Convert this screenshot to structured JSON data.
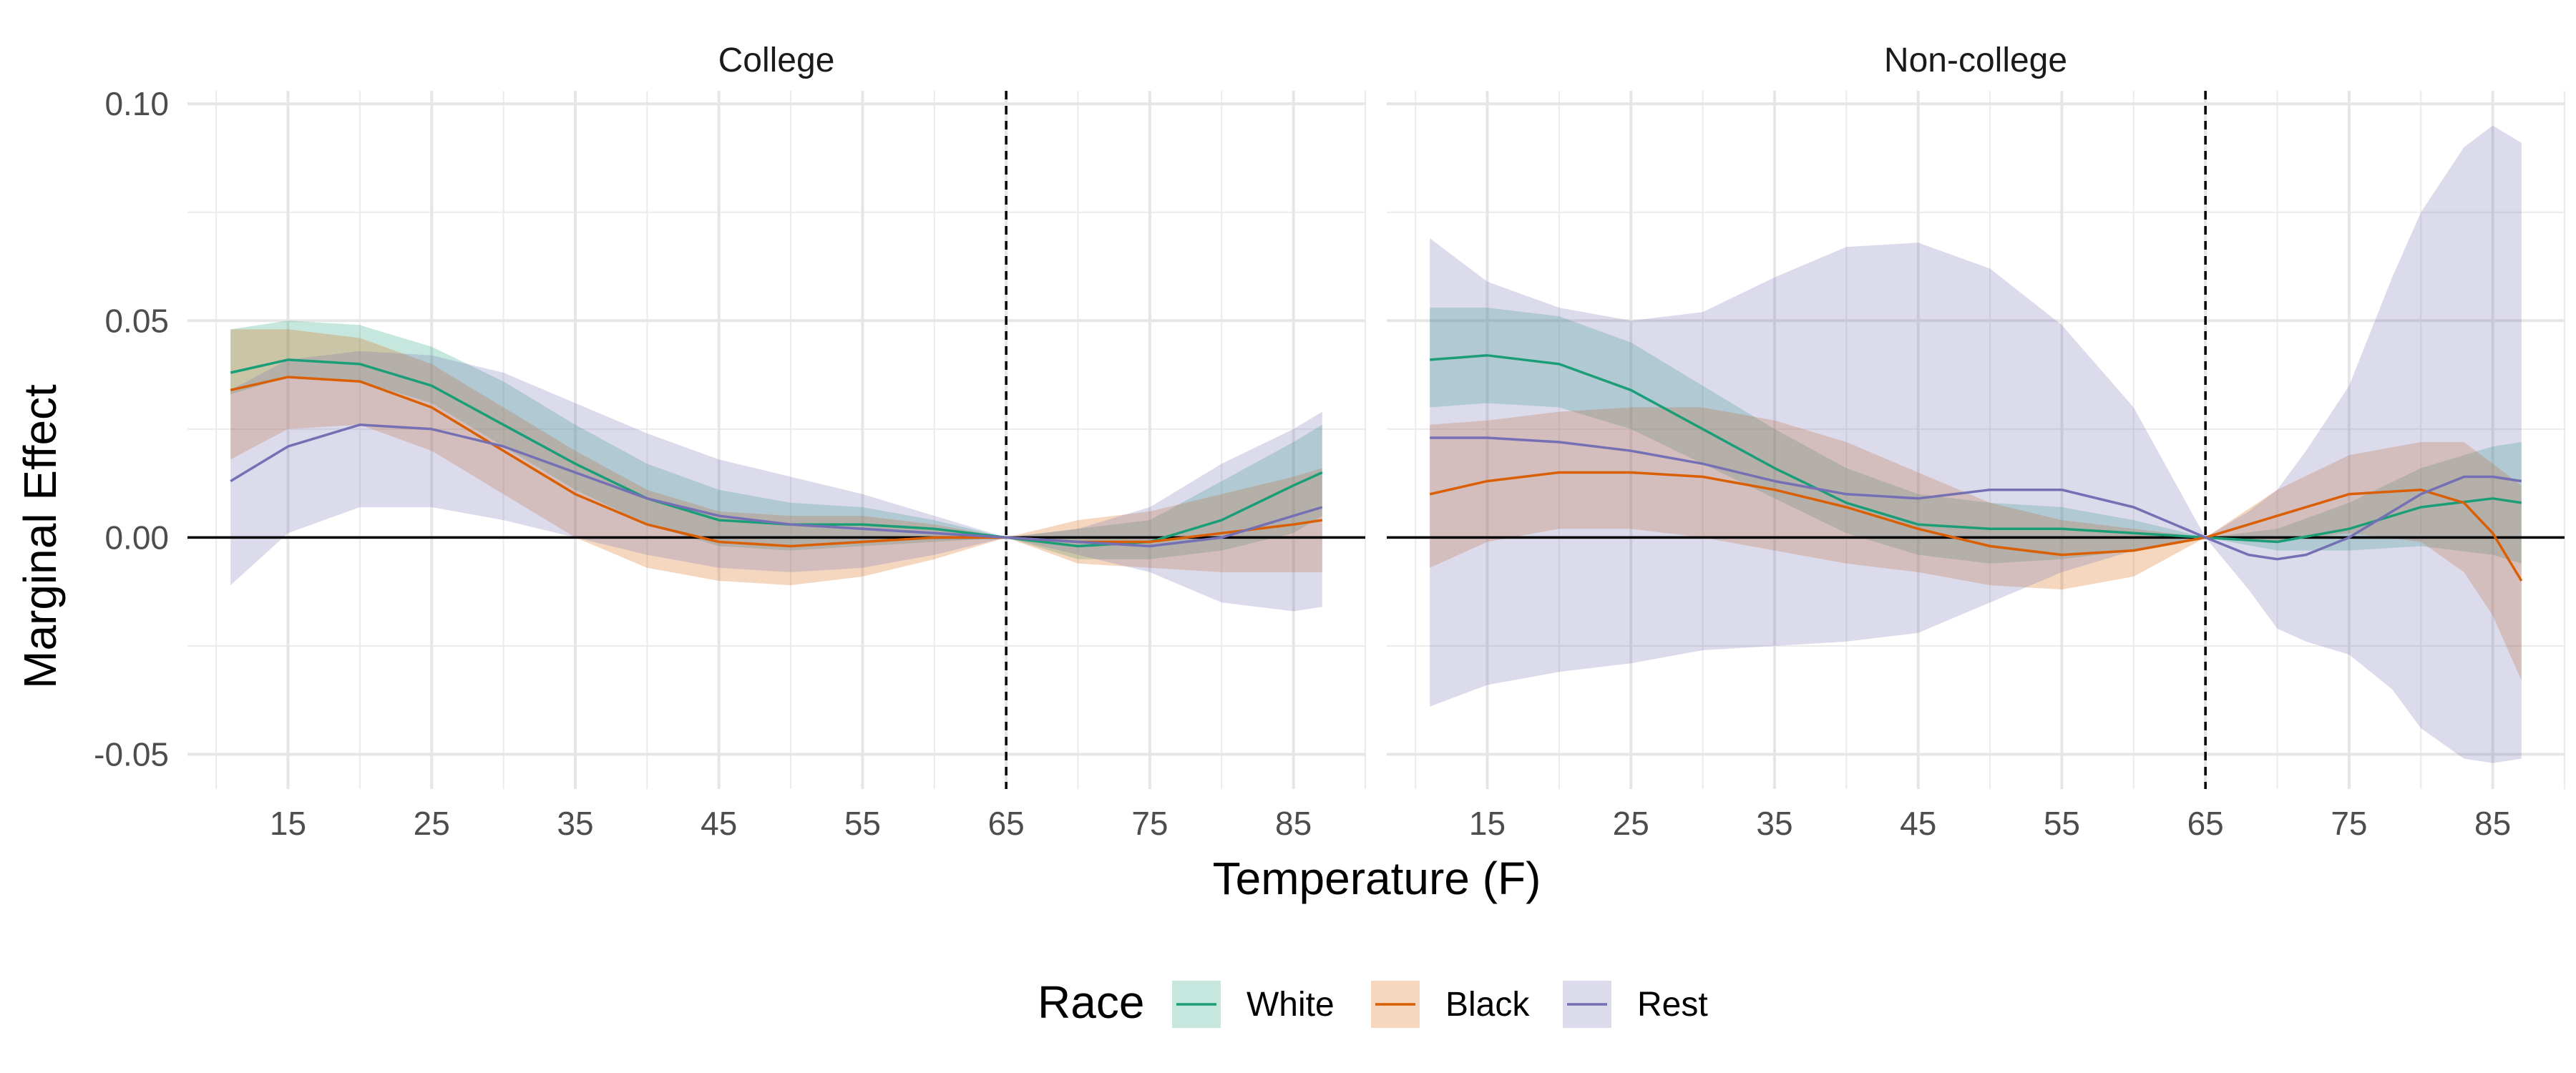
{
  "chart_data": {
    "type": "line",
    "xlabel": "Temperature (F)",
    "ylabel": "Marginal Effect",
    "xlim": [
      8,
      90
    ],
    "ylim": [
      -0.058,
      0.103
    ],
    "x_ticks": [
      15,
      25,
      35,
      45,
      55,
      65,
      75,
      85
    ],
    "y_ticks": [
      -0.05,
      0.0,
      0.05,
      0.1
    ],
    "y_tick_labels": [
      "-0.05",
      "0.00",
      "0.05",
      "0.10"
    ],
    "reference_vline": 65,
    "reference_hline": 0,
    "grid": true,
    "legend": {
      "title": "Race",
      "position": "bottom",
      "entries": [
        "White",
        "Black",
        "Rest"
      ]
    },
    "colors": {
      "White": "#1b9e77",
      "Black": "#d95f02",
      "Rest": "#7570b3"
    },
    "panels": [
      {
        "name": "College",
        "series": [
          {
            "name": "White",
            "x": [
              11,
              15,
              20,
              25,
              30,
              35,
              40,
              45,
              50,
              55,
              60,
              65,
              70,
              75,
              80,
              85,
              87
            ],
            "y": [
              0.038,
              0.041,
              0.04,
              0.035,
              0.026,
              0.017,
              0.009,
              0.004,
              0.003,
              0.003,
              0.002,
              0.0,
              -0.002,
              -0.001,
              0.004,
              0.012,
              0.015
            ],
            "lower": [
              0.033,
              0.037,
              0.036,
              0.031,
              0.021,
              0.011,
              0.003,
              -0.002,
              -0.003,
              -0.002,
              -0.001,
              0.0,
              -0.005,
              -0.005,
              -0.003,
              0.001,
              0.005
            ],
            "upper": [
              0.048,
              0.05,
              0.049,
              0.044,
              0.036,
              0.026,
              0.017,
              0.011,
              0.008,
              0.007,
              0.004,
              0.0,
              0.002,
              0.004,
              0.013,
              0.022,
              0.026
            ]
          },
          {
            "name": "Black",
            "x": [
              11,
              15,
              20,
              25,
              30,
              35,
              40,
              45,
              50,
              55,
              60,
              65,
              70,
              75,
              80,
              85,
              87
            ],
            "y": [
              0.034,
              0.037,
              0.036,
              0.03,
              0.02,
              0.01,
              0.003,
              -0.001,
              -0.002,
              -0.001,
              0.0,
              0.0,
              -0.001,
              -0.001,
              0.001,
              0.003,
              0.004
            ],
            "lower": [
              0.018,
              0.025,
              0.026,
              0.02,
              0.01,
              0.0,
              -0.007,
              -0.01,
              -0.011,
              -0.009,
              -0.005,
              0.0,
              -0.006,
              -0.007,
              -0.008,
              -0.008,
              -0.008
            ],
            "upper": [
              0.048,
              0.048,
              0.046,
              0.04,
              0.03,
              0.02,
              0.011,
              0.006,
              0.005,
              0.005,
              0.003,
              0.0,
              0.004,
              0.006,
              0.01,
              0.014,
              0.016
            ]
          },
          {
            "name": "Rest",
            "x": [
              11,
              15,
              20,
              25,
              30,
              35,
              40,
              45,
              50,
              55,
              60,
              65,
              70,
              75,
              80,
              85,
              87
            ],
            "y": [
              0.013,
              0.021,
              0.026,
              0.025,
              0.021,
              0.015,
              0.009,
              0.005,
              0.003,
              0.002,
              0.001,
              0.0,
              -0.001,
              -0.002,
              0.0,
              0.005,
              0.007
            ],
            "lower": [
              -0.011,
              0.001,
              0.007,
              0.007,
              0.004,
              0.0,
              -0.004,
              -0.007,
              -0.008,
              -0.007,
              -0.004,
              0.0,
              -0.004,
              -0.008,
              -0.015,
              -0.017,
              -0.016
            ],
            "upper": [
              0.034,
              0.041,
              0.043,
              0.042,
              0.038,
              0.031,
              0.024,
              0.018,
              0.014,
              0.01,
              0.005,
              0.0,
              0.002,
              0.007,
              0.017,
              0.025,
              0.029
            ]
          }
        ]
      },
      {
        "name": "Non-college",
        "series": [
          {
            "name": "White",
            "x": [
              11,
              15,
              20,
              25,
              30,
              35,
              40,
              45,
              50,
              55,
              60,
              65,
              70,
              75,
              80,
              85,
              87
            ],
            "y": [
              0.041,
              0.042,
              0.04,
              0.034,
              0.025,
              0.016,
              0.008,
              0.003,
              0.002,
              0.002,
              0.001,
              0.0,
              -0.001,
              0.002,
              0.007,
              0.009,
              0.008
            ],
            "lower": [
              0.03,
              0.031,
              0.03,
              0.025,
              0.017,
              0.009,
              0.001,
              -0.004,
              -0.006,
              -0.005,
              -0.003,
              0.0,
              -0.003,
              -0.003,
              -0.002,
              -0.004,
              -0.006
            ],
            "upper": [
              0.053,
              0.053,
              0.051,
              0.045,
              0.035,
              0.025,
              0.016,
              0.01,
              0.008,
              0.007,
              0.004,
              0.0,
              0.002,
              0.008,
              0.016,
              0.021,
              0.022
            ]
          },
          {
            "name": "Black",
            "x": [
              11,
              15,
              20,
              25,
              30,
              35,
              40,
              45,
              50,
              55,
              60,
              65,
              70,
              75,
              80,
              83,
              85,
              87
            ],
            "y": [
              0.01,
              0.013,
              0.015,
              0.015,
              0.014,
              0.011,
              0.007,
              0.002,
              -0.002,
              -0.004,
              -0.003,
              0.0,
              0.005,
              0.01,
              0.011,
              0.008,
              0.001,
              -0.01
            ],
            "lower": [
              -0.007,
              -0.001,
              0.002,
              0.002,
              0.0,
              -0.003,
              -0.006,
              -0.008,
              -0.011,
              -0.012,
              -0.009,
              0.0,
              -0.001,
              0.001,
              -0.001,
              -0.008,
              -0.018,
              -0.033
            ],
            "upper": [
              0.026,
              0.027,
              0.029,
              0.03,
              0.03,
              0.027,
              0.022,
              0.015,
              0.008,
              0.004,
              0.002,
              0.0,
              0.011,
              0.019,
              0.022,
              0.022,
              0.017,
              0.012
            ]
          },
          {
            "name": "Rest",
            "x": [
              11,
              15,
              20,
              25,
              30,
              35,
              40,
              45,
              50,
              55,
              60,
              65,
              68,
              70,
              72,
              75,
              78,
              80,
              83,
              85,
              87
            ],
            "y": [
              0.023,
              0.023,
              0.022,
              0.02,
              0.017,
              0.013,
              0.01,
              0.009,
              0.011,
              0.011,
              0.007,
              0.0,
              -0.004,
              -0.005,
              -0.004,
              0.0,
              0.006,
              0.01,
              0.014,
              0.014,
              0.013
            ],
            "lower": [
              -0.039,
              -0.034,
              -0.031,
              -0.029,
              -0.026,
              -0.025,
              -0.024,
              -0.022,
              -0.015,
              -0.008,
              -0.003,
              0.0,
              -0.012,
              -0.021,
              -0.024,
              -0.027,
              -0.035,
              -0.044,
              -0.051,
              -0.052,
              -0.051
            ],
            "upper": [
              0.069,
              0.059,
              0.053,
              0.05,
              0.052,
              0.06,
              0.067,
              0.068,
              0.062,
              0.049,
              0.03,
              0.0,
              0.006,
              0.011,
              0.02,
              0.035,
              0.06,
              0.075,
              0.09,
              0.095,
              0.091
            ]
          }
        ]
      }
    ]
  }
}
